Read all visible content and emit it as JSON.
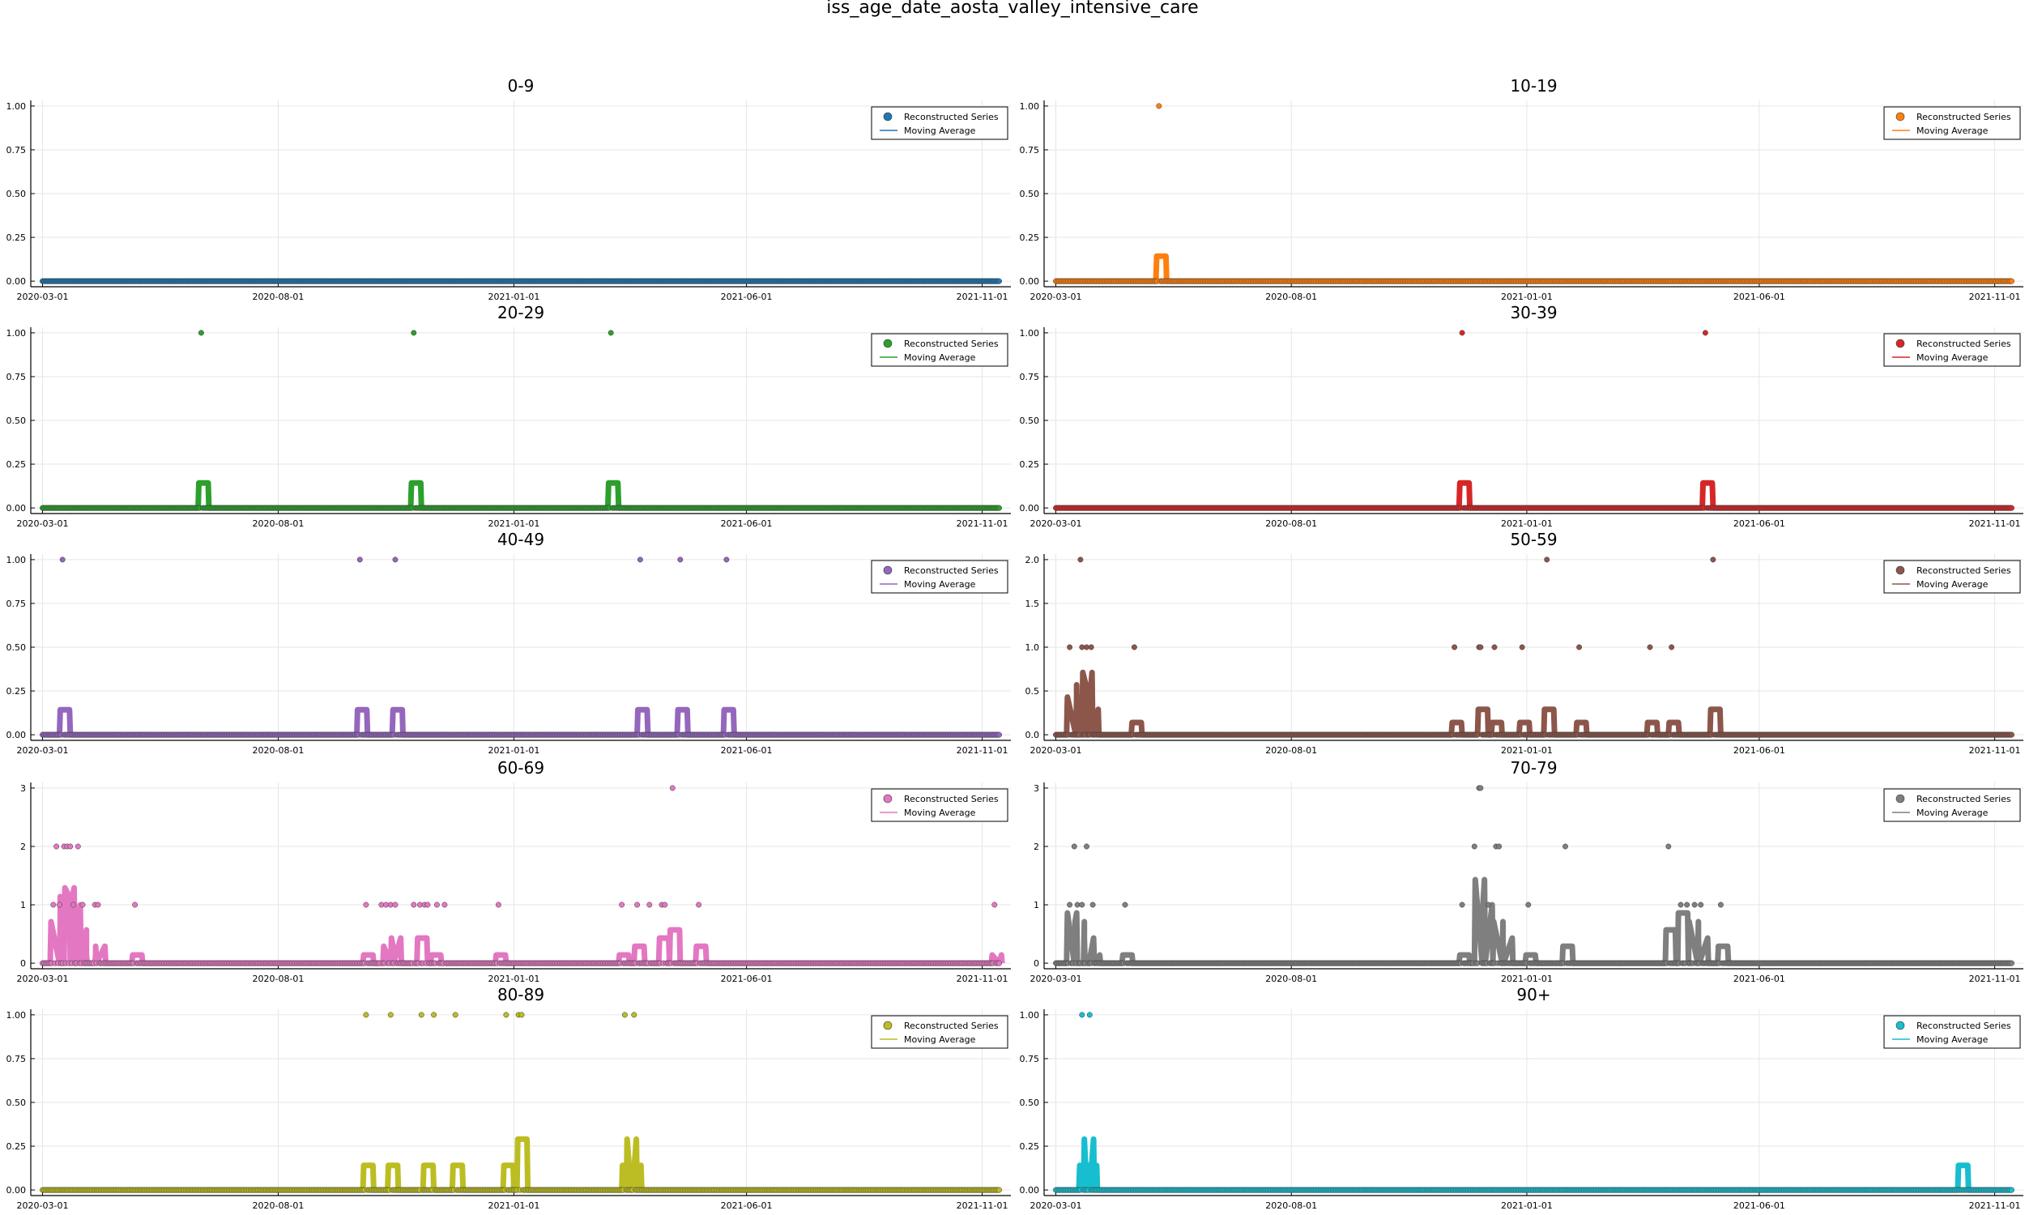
{
  "figure": {
    "title": "iss_age_date_aosta_valley_intensive_care"
  },
  "legend": {
    "scatter_label": "Reconstructed Series",
    "line_label": "Moving Average"
  },
  "x_axis": {
    "start": "2020-03-01",
    "end": "2021-11-12",
    "ticks": [
      "2020-03-01",
      "2020-08-01",
      "2021-01-01",
      "2021-06-01",
      "2021-11-01"
    ]
  },
  "chart_data": [
    {
      "type": "scatter",
      "title": "0-9",
      "color": "#1f77b4",
      "ylim": [
        0,
        1
      ],
      "yticks": [
        "0.00",
        "0.25",
        "0.50",
        "0.75",
        "1.00"
      ],
      "series": [
        {
          "name": "Reconstructed Series",
          "points": []
        },
        {
          "name": "Moving Average",
          "points": []
        }
      ]
    },
    {
      "type": "scatter",
      "title": "10-19",
      "color": "#ff7f0e",
      "ylim": [
        0,
        1
      ],
      "yticks": [
        "0.00",
        "0.25",
        "0.50",
        "0.75",
        "1.00"
      ],
      "series": [
        {
          "name": "Reconstructed Series",
          "points": [
            [
              "2020-05-07",
              1
            ]
          ]
        },
        {
          "name": "Moving Average",
          "points": [
            [
              "2020-05-07",
              0.1429
            ]
          ]
        }
      ]
    },
    {
      "type": "scatter",
      "title": "20-29",
      "color": "#2ca02c",
      "ylim": [
        0,
        1
      ],
      "yticks": [
        "0.00",
        "0.25",
        "0.50",
        "0.75",
        "1.00"
      ],
      "series": [
        {
          "name": "Reconstructed Series",
          "points": [
            [
              "2020-06-12",
              1
            ],
            [
              "2020-10-28",
              1
            ],
            [
              "2021-03-05",
              1
            ]
          ]
        },
        {
          "name": "Moving Average",
          "points": [
            [
              "2020-06-12",
              0.1429
            ],
            [
              "2020-10-28",
              0.1429
            ],
            [
              "2021-03-05",
              0.1429
            ]
          ]
        }
      ]
    },
    {
      "type": "scatter",
      "title": "30-39",
      "color": "#d62728",
      "ylim": [
        0,
        1
      ],
      "yticks": [
        "0.00",
        "0.25",
        "0.50",
        "0.75",
        "1.00"
      ],
      "series": [
        {
          "name": "Reconstructed Series",
          "points": [
            [
              "2020-11-20",
              1
            ],
            [
              "2021-04-27",
              1
            ]
          ]
        },
        {
          "name": "Moving Average",
          "points": [
            [
              "2020-11-20",
              0.1429
            ],
            [
              "2021-04-27",
              0.1429
            ]
          ]
        }
      ]
    },
    {
      "type": "scatter",
      "title": "40-49",
      "color": "#9467bd",
      "ylim": [
        0,
        1
      ],
      "yticks": [
        "0.00",
        "0.25",
        "0.50",
        "0.75",
        "1.00"
      ],
      "series": [
        {
          "name": "Reconstructed Series",
          "points": [
            [
              "2020-03-14",
              1
            ],
            [
              "2020-09-23",
              1
            ],
            [
              "2020-10-16",
              1
            ],
            [
              "2021-03-24",
              1
            ],
            [
              "2021-04-19",
              1
            ],
            [
              "2021-05-19",
              1
            ]
          ]
        },
        {
          "name": "Moving Average",
          "points": [
            [
              "2020-03-14",
              0.1429
            ],
            [
              "2020-09-23",
              0.1429
            ],
            [
              "2020-10-16",
              0.1429
            ],
            [
              "2021-03-24",
              0.1429
            ],
            [
              "2021-04-19",
              0.1429
            ],
            [
              "2021-05-19",
              0.1429
            ]
          ]
        }
      ]
    },
    {
      "type": "scatter",
      "title": "50-59",
      "color": "#8c564b",
      "ylim": [
        0,
        2
      ],
      "yticks": [
        "0.0",
        "0.5",
        "1.0",
        "1.5",
        "2.0"
      ],
      "series": [
        {
          "name": "Reconstructed Series",
          "points": [
            [
              "2020-03-10",
              1
            ],
            [
              "2020-03-17",
              2
            ],
            [
              "2020-03-18",
              1
            ],
            [
              "2020-03-21",
              1
            ],
            [
              "2020-03-24",
              1
            ],
            [
              "2020-04-21",
              1
            ],
            [
              "2020-11-15",
              1
            ],
            [
              "2020-12-01",
              1
            ],
            [
              "2020-12-02",
              1
            ],
            [
              "2020-12-11",
              1
            ],
            [
              "2020-12-29",
              1
            ],
            [
              "2021-01-14",
              2
            ],
            [
              "2021-02-04",
              1
            ],
            [
              "2021-03-22",
              1
            ],
            [
              "2021-04-05",
              1
            ],
            [
              "2021-05-02",
              2
            ]
          ]
        },
        {
          "name": "Moving Average",
          "points": [
            [
              "2020-03-10",
              0.43
            ],
            [
              "2020-03-16",
              0.57
            ],
            [
              "2020-03-20",
              0.71
            ],
            [
              "2020-03-24",
              0.29
            ],
            [
              "2020-04-21",
              0.14
            ],
            [
              "2020-11-15",
              0.14
            ],
            [
              "2020-12-02",
              0.29
            ],
            [
              "2020-12-11",
              0.14
            ],
            [
              "2020-12-29",
              0.14
            ],
            [
              "2021-01-14",
              0.29
            ],
            [
              "2021-02-04",
              0.14
            ],
            [
              "2021-03-22",
              0.14
            ],
            [
              "2021-04-05",
              0.14
            ],
            [
              "2021-05-02",
              0.29
            ]
          ]
        }
      ]
    },
    {
      "type": "scatter",
      "title": "60-69",
      "color": "#e377c2",
      "ylim": [
        0,
        3
      ],
      "yticks": [
        "0",
        "1",
        "2",
        "3"
      ],
      "series": [
        {
          "name": "Reconstructed Series",
          "points": [
            [
              "2020-03-08",
              1
            ],
            [
              "2020-03-10",
              2
            ],
            [
              "2020-03-12",
              1
            ],
            [
              "2020-03-15",
              2
            ],
            [
              "2020-03-17",
              2
            ],
            [
              "2020-03-19",
              2
            ],
            [
              "2020-03-21",
              1
            ],
            [
              "2020-03-24",
              2
            ],
            [
              "2020-03-27",
              1
            ],
            [
              "2020-04-04",
              1
            ],
            [
              "2020-04-06",
              1
            ],
            [
              "2020-04-30",
              1
            ],
            [
              "2020-09-27",
              1
            ],
            [
              "2020-10-07",
              1
            ],
            [
              "2020-10-10",
              1
            ],
            [
              "2020-10-13",
              1
            ],
            [
              "2020-10-16",
              1
            ],
            [
              "2020-10-28",
              1
            ],
            [
              "2020-11-01",
              1
            ],
            [
              "2020-11-04",
              1
            ],
            [
              "2020-11-06",
              1
            ],
            [
              "2020-11-12",
              1
            ],
            [
              "2020-11-17",
              1
            ],
            [
              "2020-12-22",
              1
            ],
            [
              "2021-03-12",
              1
            ],
            [
              "2021-03-22",
              1
            ],
            [
              "2021-03-30",
              1
            ],
            [
              "2021-04-07",
              1
            ],
            [
              "2021-04-09",
              1
            ],
            [
              "2021-04-14",
              3
            ],
            [
              "2021-05-01",
              1
            ],
            [
              "2021-11-09",
              1
            ]
          ]
        },
        {
          "name": "Moving Average",
          "points": [
            [
              "2020-03-08",
              0.71
            ],
            [
              "2020-03-14",
              1.14
            ],
            [
              "2020-03-17",
              1.29
            ],
            [
              "2020-03-21",
              1.0
            ],
            [
              "2020-03-25",
              0.57
            ],
            [
              "2020-03-31",
              0.14
            ],
            [
              "2020-04-06",
              0.29
            ],
            [
              "2020-04-30",
              0.14
            ],
            [
              "2020-09-27",
              0.14
            ],
            [
              "2020-10-10",
              0.29
            ],
            [
              "2020-10-15",
              0.43
            ],
            [
              "2020-11-01",
              0.43
            ],
            [
              "2020-11-10",
              0.14
            ],
            [
              "2020-12-22",
              0.14
            ],
            [
              "2021-03-12",
              0.14
            ],
            [
              "2021-03-22",
              0.29
            ],
            [
              "2021-04-07",
              0.43
            ],
            [
              "2021-04-14",
              0.57
            ],
            [
              "2021-05-01",
              0.29
            ],
            [
              "2021-11-09",
              0.14
            ]
          ]
        }
      ]
    },
    {
      "type": "scatter",
      "title": "70-79",
      "color": "#7f7f7f",
      "ylim": [
        0,
        3
      ],
      "yticks": [
        "0",
        "1",
        "2",
        "3"
      ],
      "series": [
        {
          "name": "Reconstructed Series",
          "points": [
            [
              "2020-03-10",
              1
            ],
            [
              "2020-03-13",
              2
            ],
            [
              "2020-03-15",
              1
            ],
            [
              "2020-03-18",
              1
            ],
            [
              "2020-03-21",
              2
            ],
            [
              "2020-03-25",
              1
            ],
            [
              "2020-04-15",
              1
            ],
            [
              "2020-11-20",
              1
            ],
            [
              "2020-11-28",
              2
            ],
            [
              "2020-12-01",
              3
            ],
            [
              "2020-12-02",
              3
            ],
            [
              "2020-12-07",
              1
            ],
            [
              "2020-12-12",
              2
            ],
            [
              "2020-12-14",
              2
            ],
            [
              "2021-01-02",
              1
            ],
            [
              "2021-01-26",
              2
            ],
            [
              "2021-04-03",
              2
            ],
            [
              "2021-04-11",
              1
            ],
            [
              "2021-04-15",
              1
            ],
            [
              "2021-04-20",
              1
            ],
            [
              "2021-04-24",
              1
            ],
            [
              "2021-05-07",
              1
            ]
          ]
        },
        {
          "name": "Moving Average",
          "points": [
            [
              "2020-03-10",
              0.86
            ],
            [
              "2020-03-15",
              0.71
            ],
            [
              "2020-03-21",
              0.43
            ],
            [
              "2020-03-25",
              0.14
            ],
            [
              "2020-04-15",
              0.14
            ],
            [
              "2020-11-20",
              0.14
            ],
            [
              "2020-11-30",
              1.43
            ],
            [
              "2020-12-05",
              1.0
            ],
            [
              "2020-12-12",
              0.71
            ],
            [
              "2020-12-18",
              0.43
            ],
            [
              "2021-01-02",
              0.14
            ],
            [
              "2021-01-26",
              0.29
            ],
            [
              "2021-04-03",
              0.57
            ],
            [
              "2021-04-11",
              0.86
            ],
            [
              "2021-04-18",
              0.71
            ],
            [
              "2021-04-24",
              0.43
            ],
            [
              "2021-05-07",
              0.29
            ]
          ]
        }
      ]
    },
    {
      "type": "scatter",
      "title": "80-89",
      "color": "#bcbd22",
      "ylim": [
        0,
        1
      ],
      "yticks": [
        "0.00",
        "0.25",
        "0.50",
        "0.75",
        "1.00"
      ],
      "series": [
        {
          "name": "Reconstructed Series",
          "points": [
            [
              "2020-09-27",
              1
            ],
            [
              "2020-10-13",
              1
            ],
            [
              "2020-11-02",
              1
            ],
            [
              "2020-11-10",
              1
            ],
            [
              "2020-11-24",
              1
            ],
            [
              "2020-12-27",
              1
            ],
            [
              "2021-01-04",
              1
            ],
            [
              "2021-01-06",
              1
            ],
            [
              "2021-03-14",
              1
            ],
            [
              "2021-03-20",
              1
            ]
          ]
        },
        {
          "name": "Moving Average",
          "points": [
            [
              "2020-09-27",
              0.14
            ],
            [
              "2020-10-13",
              0.14
            ],
            [
              "2020-11-05",
              0.14
            ],
            [
              "2020-11-24",
              0.14
            ],
            [
              "2020-12-27",
              0.14
            ],
            [
              "2021-01-05",
              0.29
            ],
            [
              "2021-03-14",
              0.14
            ],
            [
              "2021-03-17",
              0.29
            ],
            [
              "2021-03-20",
              0.14
            ]
          ]
        }
      ]
    },
    {
      "type": "scatter",
      "title": "90+",
      "color": "#17becf",
      "ylim": [
        0,
        1
      ],
      "yticks": [
        "0.00",
        "0.25",
        "0.50",
        "0.75",
        "1.00"
      ],
      "series": [
        {
          "name": "Reconstructed Series",
          "points": [
            [
              "2020-03-18",
              1
            ],
            [
              "2020-03-23",
              1
            ]
          ]
        },
        {
          "name": "Moving Average",
          "points": [
            [
              "2020-03-18",
              0.14
            ],
            [
              "2020-03-21",
              0.29
            ],
            [
              "2020-03-23",
              0.14
            ],
            [
              "2021-10-10",
              0.14
            ]
          ]
        }
      ]
    }
  ]
}
